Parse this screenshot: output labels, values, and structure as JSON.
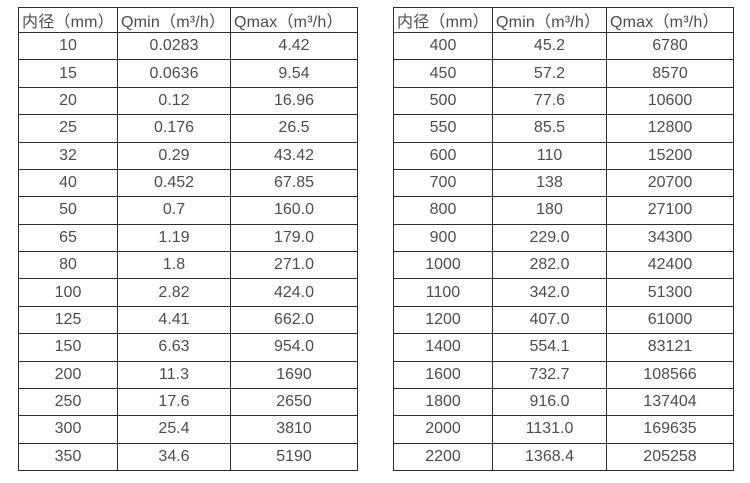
{
  "page": {
    "background": "#ffffff",
    "text_color": "#4d4d4d",
    "border_color": "#2e2e2e"
  },
  "tables": [
    {
      "name": "flow-rate-table-small-diameters",
      "headers": [
        "内径（mm）",
        "Qmin（m³/h）",
        "Qmax（m³/h）"
      ],
      "rows": [
        [
          "10",
          "0.0283",
          "4.42"
        ],
        [
          "15",
          "0.0636",
          "9.54"
        ],
        [
          "20",
          "0.12",
          "16.96"
        ],
        [
          "25",
          "0.176",
          "26.5"
        ],
        [
          "32",
          "0.29",
          "43.42"
        ],
        [
          "40",
          "0.452",
          "67.85"
        ],
        [
          "50",
          "0.7",
          "160.0"
        ],
        [
          "65",
          "1.19",
          "179.0"
        ],
        [
          "80",
          "1.8",
          "271.0"
        ],
        [
          "100",
          "2.82",
          "424.0"
        ],
        [
          "125",
          "4.41",
          "662.0"
        ],
        [
          "150",
          "6.63",
          "954.0"
        ],
        [
          "200",
          "11.3",
          "1690"
        ],
        [
          "250",
          "17.6",
          "2650"
        ],
        [
          "300",
          "25.4",
          "3810"
        ],
        [
          "350",
          "34.6",
          "5190"
        ]
      ]
    },
    {
      "name": "flow-rate-table-large-diameters",
      "headers": [
        "内径（mm）",
        "Qmin（m³/h）",
        "Qmax（m³/h）"
      ],
      "rows": [
        [
          "400",
          "45.2",
          "6780"
        ],
        [
          "450",
          "57.2",
          "8570"
        ],
        [
          "500",
          "77.6",
          "10600"
        ],
        [
          "550",
          "85.5",
          "12800"
        ],
        [
          "600",
          "110",
          "15200"
        ],
        [
          "700",
          "138",
          "20700"
        ],
        [
          "800",
          "180",
          "27100"
        ],
        [
          "900",
          "229.0",
          "34300"
        ],
        [
          "1000",
          "282.0",
          "42400"
        ],
        [
          "1100",
          "342.0",
          "51300"
        ],
        [
          "1200",
          "407.0",
          "61000"
        ],
        [
          "1400",
          "554.1",
          "83121"
        ],
        [
          "1600",
          "732.7",
          "108566"
        ],
        [
          "1800",
          "916.0",
          "137404"
        ],
        [
          "2000",
          "1131.0",
          "169635"
        ],
        [
          "2200",
          "1368.4",
          "205258"
        ]
      ]
    }
  ]
}
